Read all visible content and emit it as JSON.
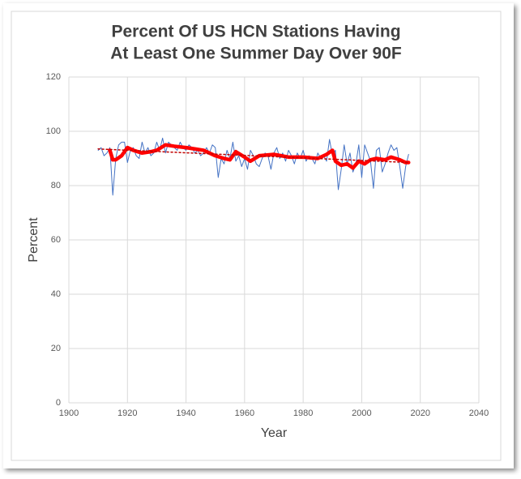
{
  "chart_data": {
    "type": "line",
    "title": "Percent Of US HCN Stations Having",
    "subtitle": "At Least One Summer Day Over 90F",
    "xlabel": "Year",
    "ylabel": "Percent",
    "xlim": [
      1900,
      2040
    ],
    "xticks": [
      1900,
      1920,
      1940,
      1960,
      1980,
      2000,
      2020,
      2040
    ],
    "ylim": [
      0,
      120
    ],
    "yticks": [
      0,
      20,
      40,
      60,
      80,
      100,
      120
    ],
    "grid": true,
    "series": [
      {
        "color": "#4472c4",
        "width": 1,
        "dash": "none",
        "x": [
          1910,
          1911,
          1912,
          1913,
          1914,
          1915,
          1916,
          1917,
          1918,
          1919,
          1920,
          1921,
          1922,
          1923,
          1924,
          1925,
          1926,
          1927,
          1928,
          1929,
          1930,
          1931,
          1932,
          1933,
          1934,
          1935,
          1936,
          1937,
          1938,
          1939,
          1940,
          1941,
          1942,
          1943,
          1944,
          1945,
          1946,
          1947,
          1948,
          1949,
          1950,
          1951,
          1952,
          1953,
          1954,
          1955,
          1956,
          1957,
          1958,
          1959,
          1960,
          1961,
          1962,
          1963,
          1964,
          1965,
          1966,
          1967,
          1968,
          1969,
          1970,
          1971,
          1972,
          1973,
          1974,
          1975,
          1976,
          1977,
          1978,
          1979,
          1980,
          1981,
          1982,
          1983,
          1984,
          1985,
          1986,
          1987,
          1988,
          1989,
          1990,
          1991,
          1992,
          1993,
          1994,
          1995,
          1996,
          1997,
          1998,
          1999,
          2000,
          2001,
          2002,
          2003,
          2004,
          2005,
          2006,
          2007,
          2008,
          2009,
          2010,
          2011,
          2012,
          2013,
          2014,
          2015,
          2016
        ],
        "values": [
          93,
          94,
          91,
          92,
          94,
          76.5,
          90,
          95,
          96,
          96,
          88.5,
          93,
          94,
          91,
          90,
          96,
          92,
          94,
          91,
          92,
          96,
          93,
          97.5,
          92,
          96,
          95,
          94,
          93,
          96,
          94,
          93,
          95,
          94,
          92,
          93,
          91,
          92,
          94,
          92,
          95,
          94,
          83,
          90,
          88,
          93,
          90,
          96,
          89,
          91,
          87,
          90,
          86,
          93,
          91,
          88,
          87,
          90,
          92,
          91,
          86,
          92,
          94,
          90,
          92,
          89,
          93,
          91,
          88,
          92,
          90,
          93,
          89,
          91,
          90,
          88,
          92,
          90,
          91,
          89,
          97,
          91,
          93,
          78.5,
          86,
          95,
          88,
          92,
          85,
          88,
          95,
          83,
          95,
          92,
          89,
          79,
          93,
          94,
          85,
          88,
          92,
          95,
          93,
          94,
          87,
          79,
          87,
          91.5
        ]
      },
      {
        "color": "#ff0000",
        "width": 4.5,
        "dash": "none",
        "x": [
          1914,
          1915,
          1916,
          1918,
          1920,
          1922,
          1925,
          1928,
          1930,
          1933,
          1936,
          1940,
          1943,
          1946,
          1950,
          1953,
          1955,
          1957,
          1960,
          1962,
          1965,
          1970,
          1975,
          1980,
          1985,
          1988,
          1990,
          1991,
          1993,
          1995,
          1997,
          1999,
          2001,
          2003,
          2005,
          2008,
          2010,
          2013,
          2015,
          2016
        ],
        "values": [
          93,
          89.5,
          89.5,
          91,
          94,
          93,
          92,
          92.5,
          93,
          95,
          94.5,
          94,
          93.5,
          93,
          91,
          90,
          89.5,
          92.5,
          90.5,
          89,
          91,
          91.5,
          90.5,
          90.5,
          90,
          91.5,
          93,
          89,
          87.5,
          88,
          86.5,
          89,
          88,
          89.5,
          90,
          89.5,
          90.5,
          89.5,
          88.5,
          88.5
        ]
      },
      {
        "color": "#c00000",
        "width": 1.5,
        "dash": "2 3",
        "x": [
          1910,
          2016
        ],
        "values": [
          93.5,
          88.5
        ]
      }
    ]
  }
}
